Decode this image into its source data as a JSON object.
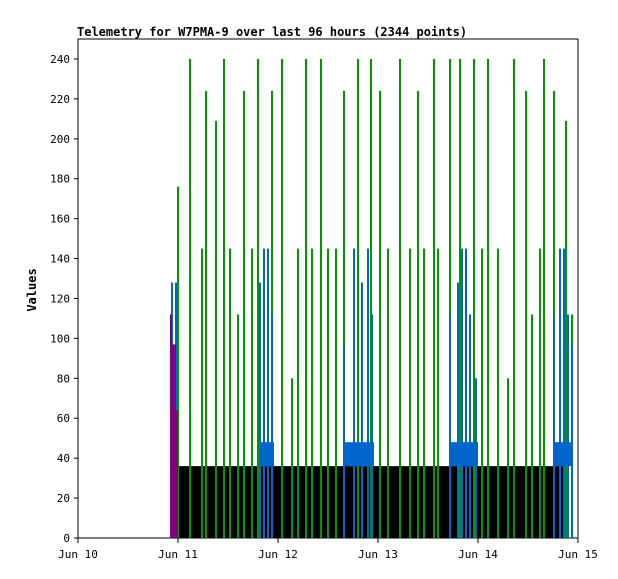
{
  "chart_data": {
    "type": "bar",
    "title": "Telemetry for W7PMA-9 over last 96 hours (2344 points)",
    "xlabel": "",
    "ylabel": "Values",
    "ylim": [
      0,
      250
    ],
    "xlim": [
      "Jun 10",
      "Jun 15"
    ],
    "grid": false,
    "legend": "none",
    "x_ticks": [
      "Jun 10",
      "Jun 11",
      "Jun 12",
      "Jun 13",
      "Jun 14",
      "Jun 15"
    ],
    "y_ticks": [
      0,
      20,
      40,
      60,
      80,
      100,
      120,
      140,
      160,
      180,
      200,
      220,
      240
    ],
    "series": [
      {
        "color": "#000000",
        "values": [
          [
            10.92,
            18
          ],
          [
            10.95,
            36
          ],
          [
            11.1,
            36
          ],
          [
            11.5,
            36
          ],
          [
            11.9,
            36
          ],
          [
            12.3,
            36
          ],
          [
            12.7,
            36
          ],
          [
            13.1,
            36
          ],
          [
            13.5,
            36
          ],
          [
            13.9,
            36
          ],
          [
            14.3,
            36
          ],
          [
            14.7,
            36
          ],
          [
            14.9,
            36
          ]
        ]
      },
      {
        "color": "#009900",
        "values": [
          [
            11.0,
            176
          ],
          [
            11.12,
            240
          ],
          [
            11.24,
            145
          ],
          [
            11.28,
            224
          ],
          [
            11.38,
            209
          ],
          [
            11.46,
            240
          ],
          [
            11.52,
            145
          ],
          [
            11.6,
            112
          ],
          [
            11.66,
            224
          ],
          [
            11.74,
            145
          ],
          [
            11.8,
            240
          ],
          [
            11.94,
            224
          ],
          [
            12.04,
            240
          ],
          [
            12.14,
            80
          ],
          [
            12.2,
            145
          ],
          [
            12.28,
            240
          ],
          [
            12.34,
            145
          ],
          [
            12.43,
            240
          ],
          [
            12.5,
            145
          ],
          [
            12.58,
            145
          ],
          [
            12.66,
            224
          ],
          [
            12.8,
            240
          ],
          [
            12.93,
            240
          ],
          [
            13.02,
            224
          ],
          [
            13.1,
            145
          ],
          [
            13.22,
            240
          ],
          [
            13.32,
            145
          ],
          [
            13.4,
            224
          ],
          [
            13.46,
            145
          ],
          [
            13.56,
            240
          ],
          [
            13.6,
            145
          ],
          [
            13.72,
            240
          ],
          [
            13.82,
            240
          ],
          [
            13.96,
            240
          ],
          [
            14.04,
            145
          ],
          [
            14.1,
            240
          ],
          [
            14.2,
            145
          ],
          [
            14.3,
            80
          ],
          [
            14.36,
            240
          ],
          [
            14.48,
            224
          ],
          [
            14.54,
            112
          ],
          [
            14.62,
            145
          ],
          [
            14.66,
            240
          ],
          [
            14.76,
            224
          ],
          [
            14.88,
            209
          ],
          [
            14.94,
            112
          ]
        ]
      },
      {
        "color": "#0066cc",
        "values": [
          [
            10.94,
            128
          ],
          [
            10.98,
            128
          ],
          [
            11.82,
            128
          ],
          [
            11.86,
            145
          ],
          [
            11.9,
            145
          ],
          [
            11.94,
            112
          ],
          [
            12.66,
            97
          ],
          [
            12.76,
            145
          ],
          [
            12.84,
            128
          ],
          [
            12.9,
            145
          ],
          [
            12.94,
            112
          ],
          [
            13.72,
            112
          ],
          [
            13.8,
            128
          ],
          [
            13.84,
            145
          ],
          [
            13.88,
            145
          ],
          [
            13.92,
            112
          ],
          [
            13.98,
            80
          ],
          [
            14.76,
            112
          ],
          [
            14.82,
            145
          ],
          [
            14.86,
            145
          ],
          [
            14.9,
            112
          ],
          [
            14.94,
            97
          ]
        ]
      },
      {
        "color": "#800080",
        "values": [
          [
            10.93,
            112
          ],
          [
            10.95,
            97
          ],
          [
            10.97,
            97
          ],
          [
            10.99,
            64
          ]
        ]
      }
    ]
  }
}
